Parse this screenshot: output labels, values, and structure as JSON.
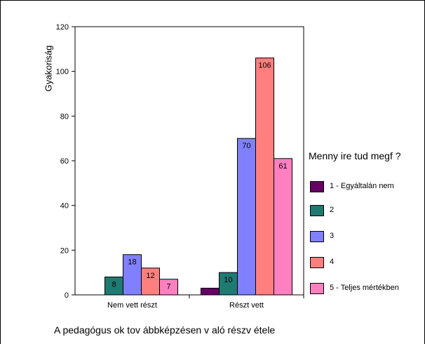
{
  "chart_data": {
    "type": "bar",
    "ylabel": "Gyakoriság",
    "xlabel": "A pedagógus ok tov ábbképzésen v aló részv étele",
    "legend_title": "Menny ire tud megf ?",
    "legend_placement": "right",
    "ylim": [
      0,
      120
    ],
    "yticks": [
      0,
      20,
      40,
      60,
      80,
      100,
      120
    ],
    "categories": [
      "Nem vett részt",
      "Részt vett"
    ],
    "series": [
      {
        "name": "1 - Egyáltalán nem",
        "color": "#660066",
        "values": [
          0,
          3
        ],
        "labels": [
          "",
          ""
        ]
      },
      {
        "name": "2",
        "color": "#1f7a72",
        "values": [
          8,
          10
        ],
        "labels": [
          "8",
          "10"
        ]
      },
      {
        "name": "3",
        "color": "#8080ff",
        "values": [
          18,
          70
        ],
        "labels": [
          "18",
          "70"
        ]
      },
      {
        "name": "4",
        "color": "#ff7f7f",
        "values": [
          12,
          106
        ],
        "labels": [
          "12",
          "106"
        ]
      },
      {
        "name": "5 - Teljes mértékben",
        "color": "#ff80c0",
        "values": [
          7,
          61
        ],
        "labels": [
          "7",
          "61"
        ]
      }
    ],
    "grid": false
  }
}
